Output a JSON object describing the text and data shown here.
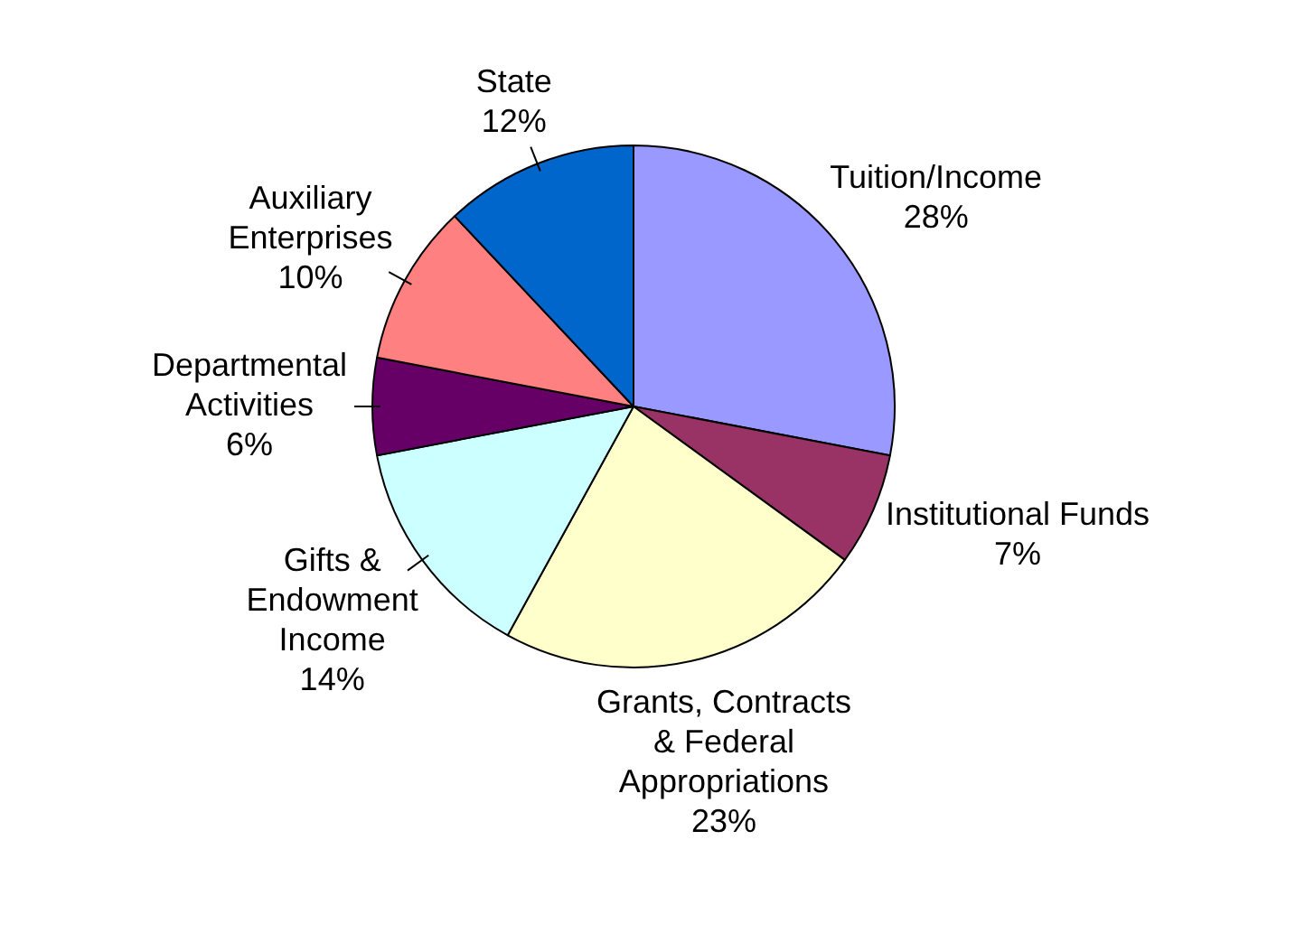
{
  "chart_data": {
    "type": "pie",
    "categories": [
      "Tuition/Income",
      "Institutional Funds",
      "Grants, Contracts & Federal Appropriations",
      "Gifts & Endowment Income",
      "Departmental Activities",
      "Auxiliary Enterprises",
      "State"
    ],
    "values": [
      28,
      7,
      23,
      14,
      6,
      10,
      12
    ],
    "value_labels": [
      "28%",
      "7%",
      "23%",
      "14%",
      "6%",
      "10%",
      "12%"
    ],
    "colors": [
      "#9999ff",
      "#993366",
      "#ffffcc",
      "#ccffff",
      "#660066",
      "#ff8080",
      "#0066cc"
    ],
    "legend": false
  }
}
